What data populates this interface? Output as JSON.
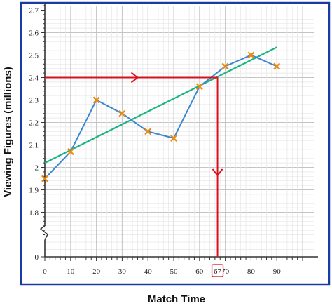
{
  "chart_data": {
    "type": "scatter",
    "title": "",
    "xlabel": "Match Time",
    "ylabel": "Viewing Figures (millions)",
    "xlim": [
      0,
      95
    ],
    "ylim": [
      1.7,
      2.75
    ],
    "x_ticks": [
      "0",
      "10",
      "20",
      "30",
      "40",
      "50",
      "60",
      "70",
      "80",
      "90"
    ],
    "y_ticks": [
      "0",
      "1.8",
      "1.9",
      "2",
      "2.1",
      "2.2",
      "2.3",
      "2.4",
      "2.5",
      "2.6",
      "2.7"
    ],
    "axis_break": true,
    "grid": true,
    "series": [
      {
        "x": [
          0,
          10,
          20,
          30,
          40,
          50,
          60,
          70,
          80,
          90
        ],
        "y": [
          1.95,
          2.07,
          2.3,
          2.24,
          2.16,
          2.13,
          2.36,
          2.45,
          2.5,
          2.45
        ]
      }
    ],
    "trend_line": {
      "x": [
        0,
        90
      ],
      "y": [
        2.02,
        2.535
      ]
    },
    "estimate": {
      "x": 67,
      "y": 2.4,
      "x_label": "67"
    },
    "colors": {
      "points": "#ea8a12",
      "data_line": "#3a86d0",
      "trend_line": "#1ab385",
      "estimate_lines": "#d8101e",
      "frame": "#1a3aa6",
      "grid": "#d6d6d6"
    }
  }
}
